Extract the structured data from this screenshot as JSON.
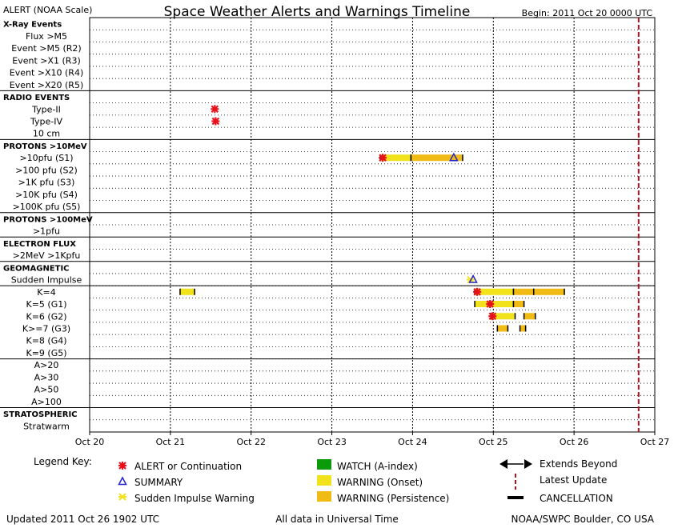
{
  "header": {
    "left": "ALERT (NOAA Scale)",
    "title": "Space Weather Alerts and Warnings Timeline",
    "begin": "Begin: 2011 Oct 20 0000 UTC"
  },
  "rows": [
    {
      "label": "X-Ray Events",
      "bold": true
    },
    {
      "label": "Flux >M5"
    },
    {
      "label": "Event >M5 (R2)"
    },
    {
      "label": "Event >X1 (R3)"
    },
    {
      "label": "Event >X10 (R4)"
    },
    {
      "label": "Event >X20 (R5)"
    },
    {
      "label": "RADIO EVENTS",
      "bold": true
    },
    {
      "label": "Type-II"
    },
    {
      "label": "Type-IV"
    },
    {
      "label": "10 cm"
    },
    {
      "label": "PROTONS >10MeV",
      "bold": true
    },
    {
      "label": ">10pfu (S1)"
    },
    {
      "label": ">100 pfu (S2)"
    },
    {
      "label": ">1K pfu (S3)"
    },
    {
      "label": ">10K pfu (S4)"
    },
    {
      "label": ">100K pfu (S5)"
    },
    {
      "label": "PROTONS >100MeV",
      "bold": true
    },
    {
      "label": ">1pfu"
    },
    {
      "label": "ELECTRON FLUX",
      "bold": true
    },
    {
      "label": ">2MeV >1Kpfu"
    },
    {
      "label": "GEOMAGNETIC",
      "bold": true
    },
    {
      "label": "Sudden Impulse"
    },
    {
      "label": "K=4"
    },
    {
      "label": "K=5 (G1)"
    },
    {
      "label": "K=6 (G2)"
    },
    {
      "label": "K>=7 (G3)"
    },
    {
      "label": "K=8 (G4)"
    },
    {
      "label": "K=9 (G5)"
    },
    {
      "label": "A>20"
    },
    {
      "label": "A>30"
    },
    {
      "label": "A>50"
    },
    {
      "label": "A>100"
    },
    {
      "label": "STRATOSPHERIC",
      "bold": true
    },
    {
      "label": "Stratwarm"
    }
  ],
  "chart_data": {
    "type": "timeline",
    "x_ticks": [
      "Oct 20",
      "Oct 21",
      "Oct 22",
      "Oct 23",
      "Oct 24",
      "Oct 25",
      "Oct 26",
      "Oct 27"
    ],
    "xlim_days": [
      20,
      27
    ],
    "latest_update_day": 26.8,
    "colors": {
      "alert": "#e8101a",
      "summary": "#2222cc",
      "watch": "#0a9a0a",
      "warning_onset": "#f2e21c",
      "warning_persistence": "#f0bb14",
      "latest_update": "#b4121c"
    },
    "bars": [
      {
        "row": 22,
        "start": 21.12,
        "end": 21.3,
        "kind": "warning_onset"
      },
      {
        "row": 11,
        "start": 23.6,
        "end": 23.98,
        "kind": "warning_onset"
      },
      {
        "row": 11,
        "start": 23.98,
        "end": 24.62,
        "kind": "warning_persistence"
      },
      {
        "row": 22,
        "start": 24.77,
        "end": 25.25,
        "kind": "warning_onset"
      },
      {
        "row": 22,
        "start": 25.25,
        "end": 25.5,
        "kind": "warning_persistence"
      },
      {
        "row": 22,
        "start": 25.5,
        "end": 25.88,
        "kind": "warning_persistence"
      },
      {
        "row": 23,
        "start": 24.77,
        "end": 25.25,
        "kind": "warning_onset"
      },
      {
        "row": 23,
        "start": 25.25,
        "end": 25.38,
        "kind": "warning_persistence"
      },
      {
        "row": 24,
        "start": 24.97,
        "end": 25.27,
        "kind": "warning_onset"
      },
      {
        "row": 24,
        "start": 25.38,
        "end": 25.52,
        "kind": "warning_persistence"
      },
      {
        "row": 25,
        "start": 25.05,
        "end": 25.18,
        "kind": "warning_persistence"
      },
      {
        "row": 25,
        "start": 25.33,
        "end": 25.4,
        "kind": "warning_persistence"
      }
    ],
    "alerts": [
      {
        "row": 7,
        "day": 21.55
      },
      {
        "row": 8,
        "day": 21.56
      },
      {
        "row": 11,
        "day": 23.63
      },
      {
        "row": 22,
        "day": 24.8
      },
      {
        "row": 23,
        "day": 24.96
      },
      {
        "row": 24,
        "day": 24.99
      }
    ],
    "summaries": [
      {
        "row": 11,
        "day": 24.51
      },
      {
        "row": 21,
        "day": 24.75
      }
    ],
    "sudden_impulses": [
      {
        "row": 21,
        "day": 24.72
      }
    ]
  },
  "legend": {
    "title": "Legend Key:",
    "alert": "ALERT or Continuation",
    "summary": "SUMMARY",
    "sudden": "Sudden Impulse Warning",
    "watch": "WATCH (A-index)",
    "onset": "WARNING (Onset)",
    "persistence": "WARNING (Persistence)",
    "extends": "Extends Beyond",
    "latest": "Latest Update",
    "cancel": "CANCELLATION"
  },
  "footer": {
    "updated": "Updated 2011 Oct 26 1902 UTC",
    "universal": "All data in Universal Time",
    "source": "NOAA/SWPC Boulder, CO USA"
  }
}
